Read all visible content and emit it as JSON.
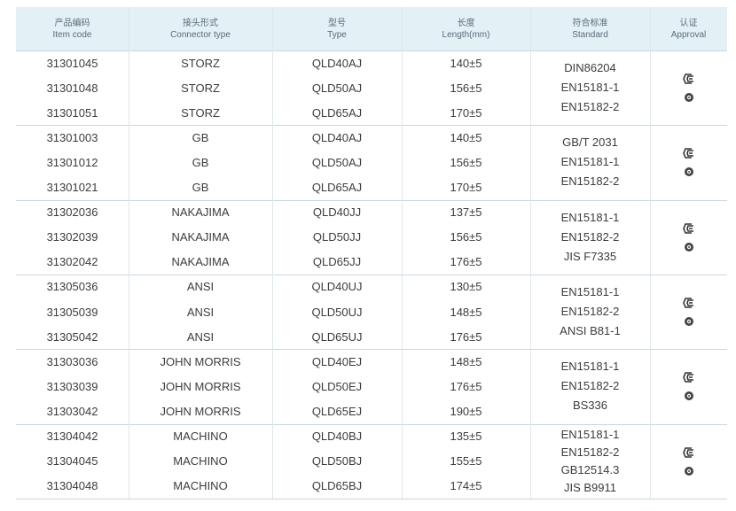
{
  "table": {
    "header": [
      {
        "zh": "产品编码",
        "en": "Item code"
      },
      {
        "zh": "接头形式",
        "en": "Connector type"
      },
      {
        "zh": "型号",
        "en": "Type"
      },
      {
        "zh": "长度",
        "en": "Length(mm)"
      },
      {
        "zh": "符合标准",
        "en": "Standard"
      },
      {
        "zh": "认证",
        "en": "Approval"
      }
    ],
    "groups": [
      {
        "rows": [
          [
            "31301045",
            "STORZ",
            "QLD40AJ",
            "140±5"
          ],
          [
            "31301048",
            "STORZ",
            "QLD50AJ",
            "156±5"
          ],
          [
            "31301051",
            "STORZ",
            "QLD65AJ",
            "170±5"
          ]
        ],
        "standards": [
          "DIN86204",
          "EN15181-1",
          "EN15182-2"
        ]
      },
      {
        "rows": [
          [
            "31301003",
            "GB",
            "QLD40AJ",
            "140±5"
          ],
          [
            "31301012",
            "GB",
            "QLD50AJ",
            "156±5"
          ],
          [
            "31301021",
            "GB",
            "QLD65AJ",
            "170±5"
          ]
        ],
        "standards": [
          "GB/T 2031",
          "EN15181-1",
          "EN15182-2"
        ]
      },
      {
        "rows": [
          [
            "31302036",
            "NAKAJIMA",
            "QLD40JJ",
            "137±5"
          ],
          [
            "31302039",
            "NAKAJIMA",
            "QLD50JJ",
            "156±5"
          ],
          [
            "31302042",
            "NAKAJIMA",
            "QLD65JJ",
            "176±5"
          ]
        ],
        "standards": [
          "EN15181-1",
          "EN15182-2",
          "JIS F7335"
        ]
      },
      {
        "rows": [
          [
            "31305036",
            "ANSI",
            "QLD40UJ",
            "130±5"
          ],
          [
            "31305039",
            "ANSI",
            "QLD50UJ",
            "148±5"
          ],
          [
            "31305042",
            "ANSI",
            "QLD65UJ",
            "176±5"
          ]
        ],
        "standards": [
          "EN15181-1",
          "EN15182-2",
          "ANSI B81-1"
        ]
      },
      {
        "rows": [
          [
            "31303036",
            "JOHN MORRIS",
            "QLD40EJ",
            "148±5"
          ],
          [
            "31303039",
            "JOHN MORRIS",
            "QLD50EJ",
            "176±5"
          ],
          [
            "31303042",
            "JOHN MORRIS",
            "QLD65EJ",
            "190±5"
          ]
        ],
        "standards": [
          "EN15181-1",
          "EN15182-2",
          "BS336"
        ]
      },
      {
        "rows": [
          [
            "31304042",
            "MACHINO",
            "QLD40BJ",
            "135±5"
          ],
          [
            "31304045",
            "MACHINO",
            "QLD50BJ",
            "155±5"
          ],
          [
            "31304048",
            "MACHINO",
            "QLD65BJ",
            "174±5"
          ]
        ],
        "standards": [
          "EN15181-1",
          "EN15182-2",
          "GB12514.3",
          "JIS B9911"
        ]
      }
    ]
  }
}
